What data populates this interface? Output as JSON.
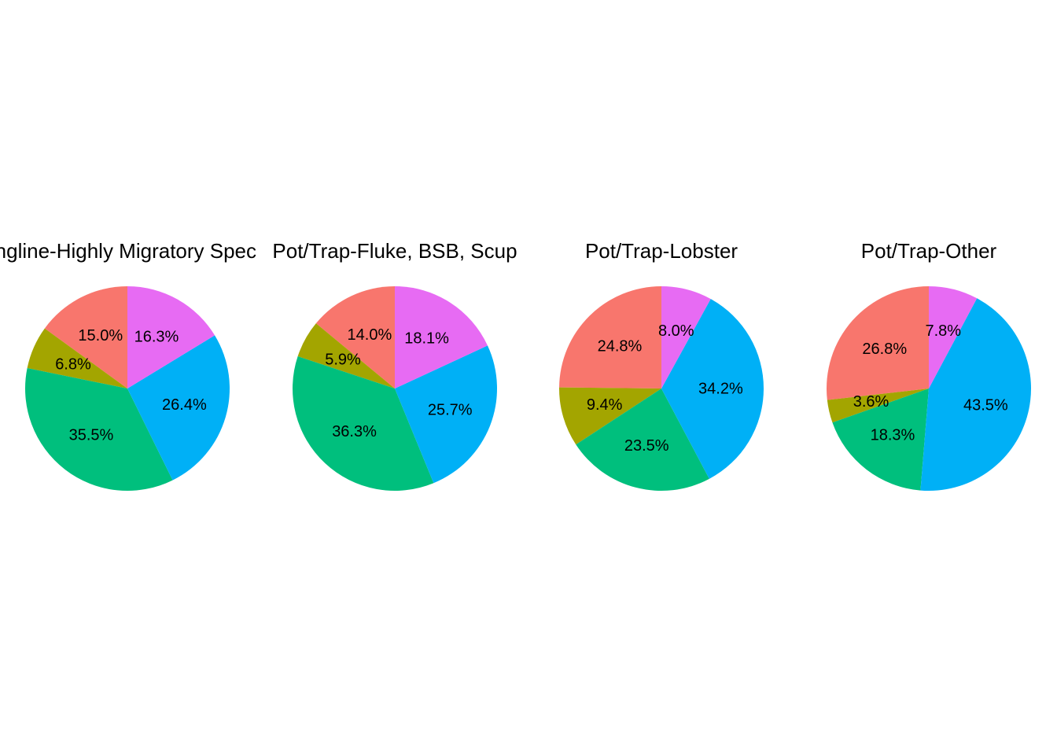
{
  "chart_data": [
    {
      "type": "pie",
      "title": "Longline-Highly Migratory Species",
      "slices": [
        {
          "value": 15.0,
          "label": "15.0%",
          "color": "#F8766D"
        },
        {
          "value": 6.8,
          "label": "6.8%",
          "color": "#A3A500"
        },
        {
          "value": 35.5,
          "label": "35.5%",
          "color": "#00BF7D"
        },
        {
          "value": 26.4,
          "label": "26.4%",
          "color": "#00B0F6"
        },
        {
          "value": 16.3,
          "label": "16.3%",
          "color": "#E76BF3"
        }
      ]
    },
    {
      "type": "pie",
      "title": "Pot/Trap-Fluke, BSB, Scup",
      "slices": [
        {
          "value": 14.0,
          "label": "14.0%",
          "color": "#F8766D"
        },
        {
          "value": 5.9,
          "label": "5.9%",
          "color": "#A3A500"
        },
        {
          "value": 36.3,
          "label": "36.3%",
          "color": "#00BF7D"
        },
        {
          "value": 25.7,
          "label": "25.7%",
          "color": "#00B0F6"
        },
        {
          "value": 18.1,
          "label": "18.1%",
          "color": "#E76BF3"
        }
      ]
    },
    {
      "type": "pie",
      "title": "Pot/Trap-Lobster",
      "slices": [
        {
          "value": 24.8,
          "label": "24.8%",
          "color": "#F8766D"
        },
        {
          "value": 9.4,
          "label": "9.4%",
          "color": "#A3A500"
        },
        {
          "value": 23.5,
          "label": "23.5%",
          "color": "#00BF7D"
        },
        {
          "value": 34.2,
          "label": "34.2%",
          "color": "#00B0F6"
        },
        {
          "value": 8.0,
          "label": "8.0%",
          "color": "#E76BF3"
        }
      ]
    },
    {
      "type": "pie",
      "title": "Pot/Trap-Other",
      "slices": [
        {
          "value": 26.8,
          "label": "26.8%",
          "color": "#F8766D"
        },
        {
          "value": 3.6,
          "label": "3.6%",
          "color": "#A3A500"
        },
        {
          "value": 18.3,
          "label": "18.3%",
          "color": "#00BF7D"
        },
        {
          "value": 43.5,
          "label": "43.5%",
          "color": "#00B0F6"
        },
        {
          "value": 7.8,
          "label": "7.8%",
          "color": "#E76BF3"
        }
      ]
    }
  ]
}
